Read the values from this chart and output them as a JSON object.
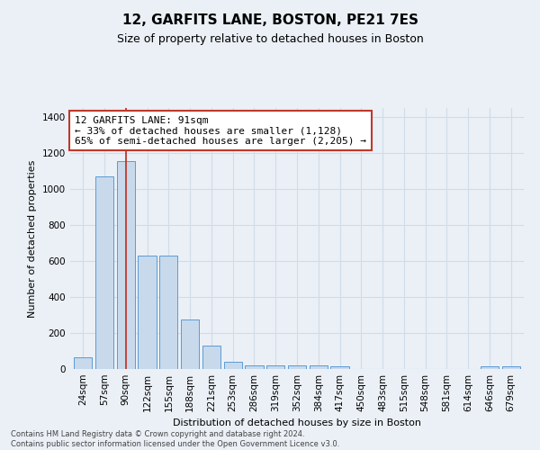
{
  "title": "12, GARFITS LANE, BOSTON, PE21 7ES",
  "subtitle": "Size of property relative to detached houses in Boston",
  "xlabel": "Distribution of detached houses by size in Boston",
  "ylabel": "Number of detached properties",
  "footnote1": "Contains HM Land Registry data © Crown copyright and database right 2024.",
  "footnote2": "Contains public sector information licensed under the Open Government Licence v3.0.",
  "categories": [
    "24sqm",
    "57sqm",
    "90sqm",
    "122sqm",
    "155sqm",
    "188sqm",
    "221sqm",
    "253sqm",
    "286sqm",
    "319sqm",
    "352sqm",
    "384sqm",
    "417sqm",
    "450sqm",
    "483sqm",
    "515sqm",
    "548sqm",
    "581sqm",
    "614sqm",
    "646sqm",
    "679sqm"
  ],
  "values": [
    65,
    1070,
    1155,
    630,
    630,
    275,
    130,
    40,
    22,
    22,
    22,
    20,
    13,
    0,
    0,
    0,
    0,
    0,
    0,
    13,
    13
  ],
  "bar_color": "#c8d9ec",
  "bar_edge_color": "#5b9bd5",
  "property_bar_index": 2,
  "vline_color": "#c0392b",
  "annotation_line1": "12 GARFITS LANE: 91sqm",
  "annotation_line2": "← 33% of detached houses are smaller (1,128)",
  "annotation_line3": "65% of semi-detached houses are larger (2,205) →",
  "annotation_box_color": "#c0392b",
  "ylim": [
    0,
    1450
  ],
  "yticks": [
    0,
    200,
    400,
    600,
    800,
    1000,
    1200,
    1400
  ],
  "bg_color": "#eaf0f6",
  "grid_color": "#d0dce8",
  "title_fontsize": 11,
  "subtitle_fontsize": 9,
  "axis_label_fontsize": 8,
  "tick_fontsize": 7.5,
  "annotation_fontsize": 8
}
